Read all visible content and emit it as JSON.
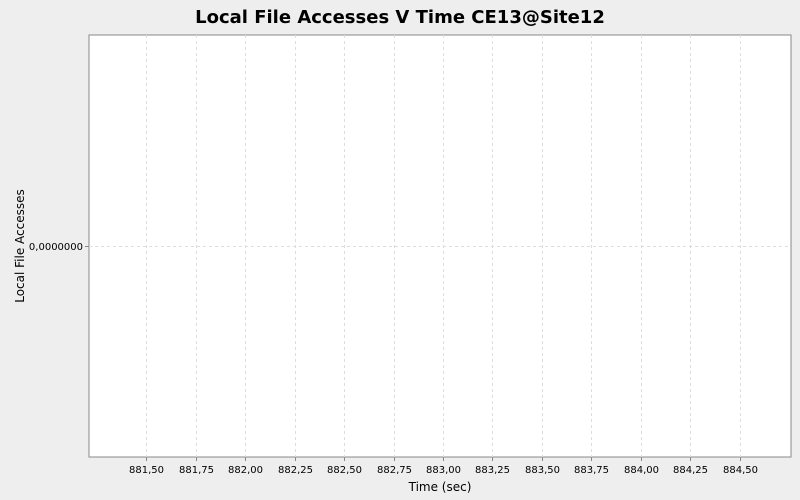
{
  "chart_data": {
    "type": "line",
    "title": "Local File Accesses V Time CE13@Site12",
    "xlabel": "Time (sec)",
    "ylabel": "Local File Accesses",
    "x_ticks": [
      "881,50",
      "881,75",
      "882,00",
      "882,25",
      "882,50",
      "882,75",
      "883,00",
      "883,25",
      "883,50",
      "883,75",
      "884,00",
      "884,25",
      "884,50"
    ],
    "x_tick_values": [
      881.5,
      881.75,
      882.0,
      882.25,
      882.5,
      882.75,
      883.0,
      883.25,
      883.5,
      883.75,
      884.0,
      884.25,
      884.5
    ],
    "xlim": [
      881.21,
      884.76
    ],
    "y_ticks": [
      "0,0000000"
    ],
    "y_tick_values": [
      0
    ],
    "ylim": [
      -1,
      1
    ],
    "grid": true,
    "series": [],
    "colors": {
      "background": "#eeeeee",
      "plot_background": "#ffffff",
      "gridline": "#dddddd",
      "axis": "#888888"
    }
  }
}
